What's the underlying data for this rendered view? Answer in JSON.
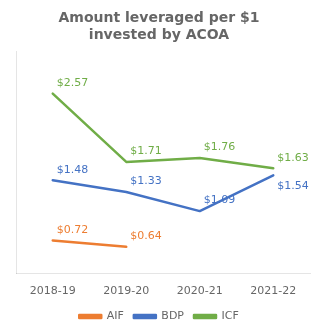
{
  "chart_data": {
    "type": "line",
    "title": "Amount leveraged per $1\ninvested by ACOA",
    "categories": [
      "2018-19",
      "2019-20",
      "2020-21",
      "2021-22"
    ],
    "series": [
      {
        "name": "AIF",
        "color": "#ED7D31",
        "values": [
          0.72,
          0.64,
          null,
          null
        ],
        "value_labels": [
          "$0.72",
          "$0.64",
          null,
          null
        ]
      },
      {
        "name": "BDP",
        "color": "#4472C4",
        "values": [
          1.48,
          1.33,
          1.09,
          1.54
        ],
        "value_labels": [
          "$1.48",
          "$1.33",
          "$1.09",
          "$1.54"
        ]
      },
      {
        "name": "ICF",
        "color": "#70AD47",
        "values": [
          2.57,
          1.71,
          1.76,
          1.63
        ],
        "value_labels": [
          "$2.57",
          "$1.71",
          "$1.76",
          "$1.63"
        ]
      }
    ],
    "ylim": [
      0.3,
      3.1
    ],
    "tick_labels": "x",
    "grid": false,
    "legend": "bottom",
    "data_labels": true
  }
}
